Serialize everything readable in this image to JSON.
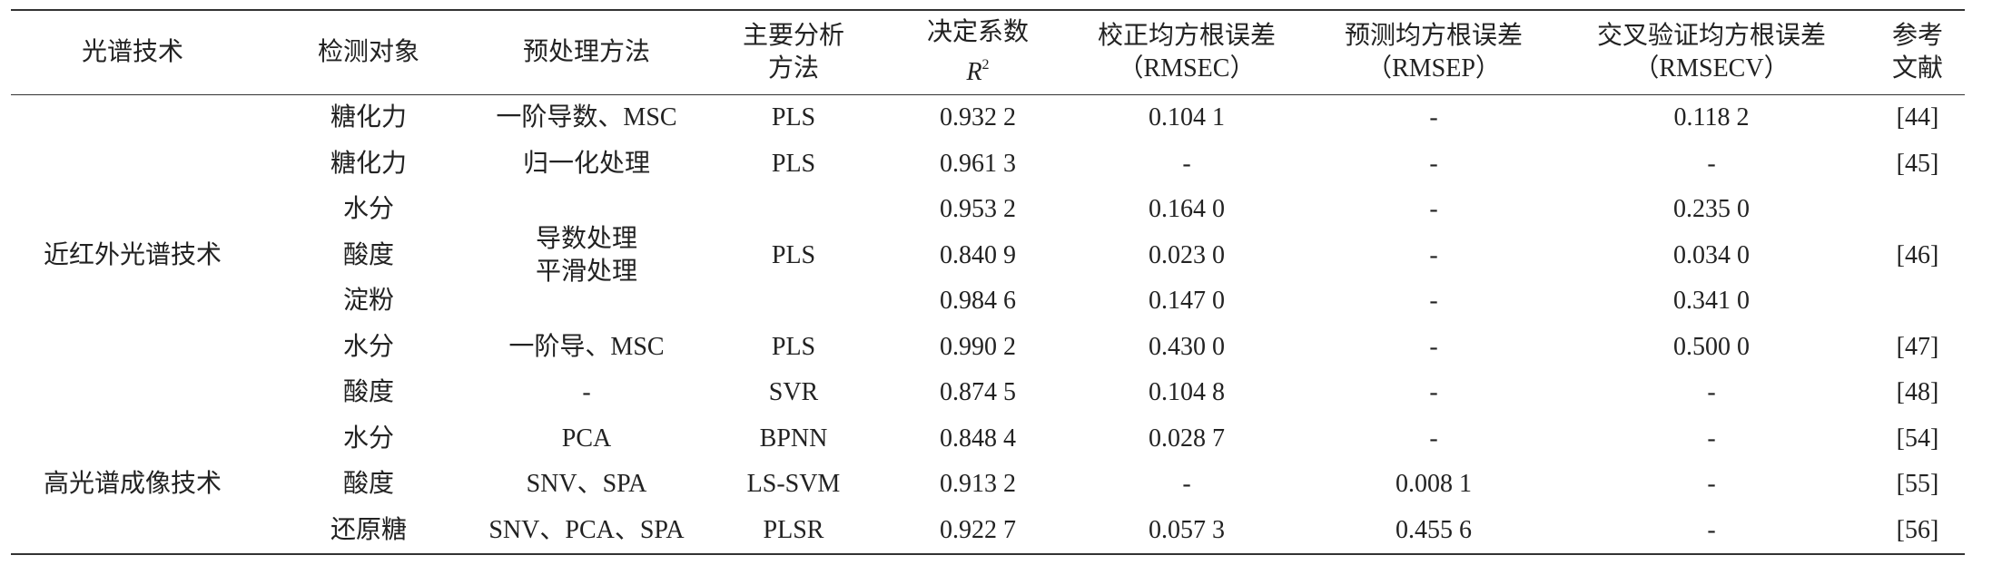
{
  "table": {
    "header": {
      "technique": "光谱技术",
      "target": "检测对象",
      "pretreatment": "预处理方法",
      "method": [
        "主要分析",
        "方法"
      ],
      "r2": {
        "label": "决定系数",
        "symbol": "R",
        "sup": "2"
      },
      "rmsec": [
        "校正均方根误差",
        "（RMSEC）"
      ],
      "rmsep": [
        "预测均方根误差",
        "（RMSEP）"
      ],
      "rmsecv": [
        "交叉验证均方根误差",
        "（RMSECV）"
      ],
      "ref": [
        "参考",
        "文献"
      ]
    },
    "techniques": [
      "近红外光谱技术",
      "高光谱成像技术"
    ],
    "rows": [
      [
        "糖化力",
        "一阶导数、MSC",
        "PLS",
        "0.932 2",
        "0.104 1",
        "-",
        "0.118 2",
        "[44]"
      ],
      [
        "糖化力",
        "归一化处理",
        "PLS",
        "0.961 3",
        "-",
        "-",
        "-",
        "[45]"
      ],
      [
        "水分",
        [
          "导数处理",
          "平滑处理"
        ],
        "PLS",
        "0.953 2",
        "0.164 0",
        "-",
        "0.235 0",
        "[46]"
      ],
      [
        "酸度",
        "0.840 9",
        "0.023 0",
        "-",
        "0.034 0"
      ],
      [
        "淀粉",
        "0.984 6",
        "0.147 0",
        "-",
        "0.341 0"
      ],
      [
        "水分",
        "一阶导、MSC",
        "PLS",
        "0.990 2",
        "0.430 0",
        "-",
        "0.500 0",
        "[47]"
      ],
      [
        "酸度",
        "-",
        "SVR",
        "0.874 5",
        "0.104 8",
        "-",
        "-",
        "[48]"
      ],
      [
        "水分",
        "PCA",
        "BPNN",
        "0.848 4",
        "0.028 7",
        "-",
        "-",
        "[54]"
      ],
      [
        "酸度",
        "SNV、SPA",
        "LS-SVM",
        "0.913 2",
        "-",
        "0.008 1",
        "-",
        "[55]"
      ],
      [
        "还原糖",
        "SNV、PCA、SPA",
        "PLSR",
        "0.922 7",
        "0.057 3",
        "0.455 6",
        "-",
        "[56]"
      ]
    ]
  }
}
